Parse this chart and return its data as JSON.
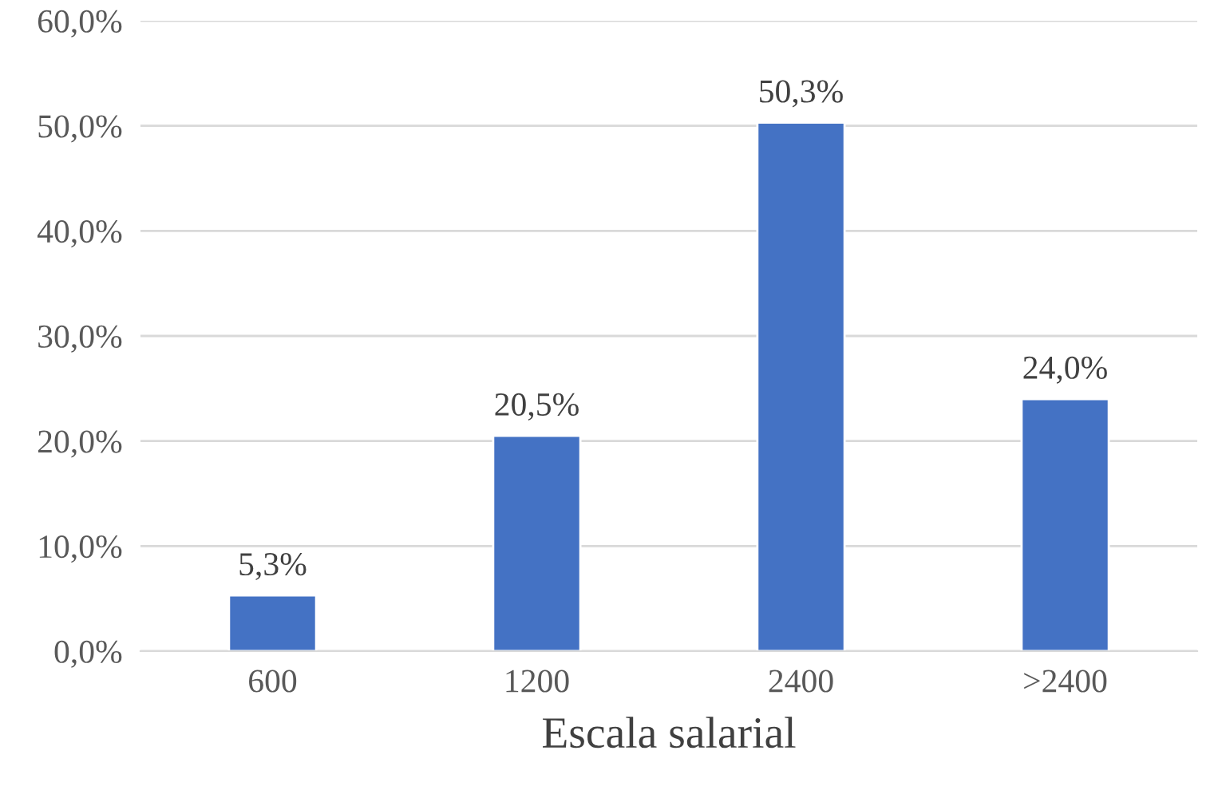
{
  "chart_data": {
    "type": "bar",
    "xlabel": "Escala salarial",
    "categories": [
      "600",
      "1200",
      "2400",
      ">2400"
    ],
    "values": [
      5.3,
      20.5,
      50.3,
      24.0
    ],
    "value_labels": [
      "5,3%",
      "20,5%",
      "50,3%",
      "24,0%"
    ],
    "color": "#4472c4",
    "ylim": [
      0,
      60
    ],
    "yticks": [
      {
        "value": 0,
        "label": "0,0%"
      },
      {
        "value": 10,
        "label": "10,0%"
      },
      {
        "value": 20,
        "label": "20,0%"
      },
      {
        "value": 30,
        "label": "30,0%"
      },
      {
        "value": 40,
        "label": "40,0%"
      },
      {
        "value": 50,
        "label": "50,0%"
      },
      {
        "value": 60,
        "label": "60,0%"
      }
    ],
    "grid": "y",
    "legend": false
  }
}
